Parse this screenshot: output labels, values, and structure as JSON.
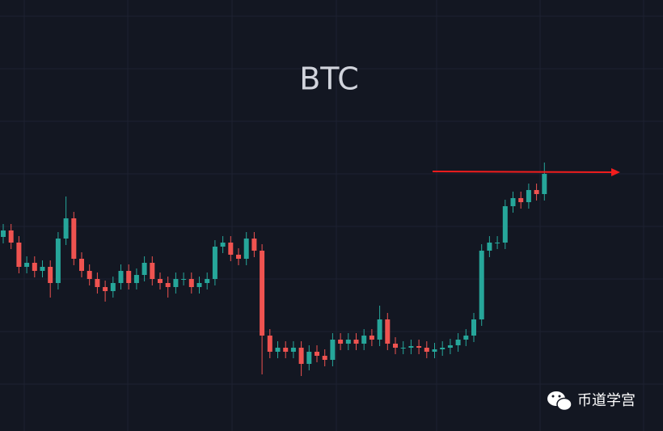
{
  "chart_data": {
    "type": "candlestick",
    "title": "BTC",
    "watermark": "币道学宫",
    "up_color": "#26a69a",
    "down_color": "#ef5350",
    "ylim": [
      0,
      533
    ],
    "open": [
      240,
      248,
      233,
      203,
      208,
      198,
      203,
      183,
      238,
      263,
      213,
      198,
      188,
      178,
      173,
      183,
      198,
      183,
      193,
      208,
      188,
      183,
      178,
      188,
      188,
      178,
      183,
      188,
      228,
      233,
      218,
      213,
      238,
      223,
      118,
      98,
      103,
      98,
      103,
      83,
      98,
      93,
      88,
      113,
      108,
      113,
      108,
      118,
      113,
      138,
      108,
      103,
      103,
      105,
      103,
      98,
      101,
      103,
      106,
      113,
      118,
      138,
      223,
      233,
      233,
      278,
      288,
      283,
      298,
      293
    ],
    "high": [
      256,
      256,
      241,
      216,
      216,
      211,
      211,
      246,
      290,
      271,
      221,
      206,
      196,
      186,
      191,
      206,
      206,
      201,
      216,
      216,
      196,
      191,
      196,
      196,
      196,
      191,
      196,
      236,
      241,
      241,
      226,
      246,
      246,
      231,
      126,
      111,
      111,
      111,
      111,
      106,
      106,
      101,
      121,
      121,
      121,
      121,
      126,
      126,
      155,
      146,
      116,
      111,
      113,
      113,
      111,
      109,
      111,
      114,
      121,
      126,
      146,
      231,
      241,
      241,
      286,
      296,
      296,
      306,
      306,
      332
    ],
    "low": [
      232,
      225,
      195,
      195,
      190,
      190,
      165,
      175,
      230,
      205,
      190,
      180,
      170,
      160,
      165,
      175,
      175,
      175,
      185,
      180,
      175,
      165,
      170,
      180,
      170,
      170,
      175,
      180,
      220,
      210,
      205,
      205,
      215,
      70,
      90,
      90,
      90,
      90,
      68,
      75,
      85,
      80,
      80,
      100,
      100,
      100,
      100,
      105,
      105,
      100,
      95,
      95,
      95,
      95,
      90,
      90,
      93,
      95,
      98,
      105,
      110,
      130,
      215,
      225,
      225,
      270,
      275,
      275,
      285,
      285
    ],
    "close": [
      248,
      233,
      203,
      208,
      198,
      203,
      183,
      238,
      263,
      213,
      198,
      188,
      178,
      173,
      183,
      198,
      183,
      193,
      208,
      188,
      183,
      178,
      188,
      188,
      178,
      183,
      188,
      228,
      233,
      218,
      213,
      238,
      223,
      118,
      98,
      103,
      98,
      103,
      83,
      98,
      93,
      88,
      113,
      108,
      113,
      108,
      118,
      113,
      138,
      108,
      103,
      103,
      105,
      103,
      98,
      101,
      103,
      106,
      113,
      118,
      138,
      223,
      233,
      233,
      278,
      288,
      283,
      298,
      293,
      318
    ]
  }
}
